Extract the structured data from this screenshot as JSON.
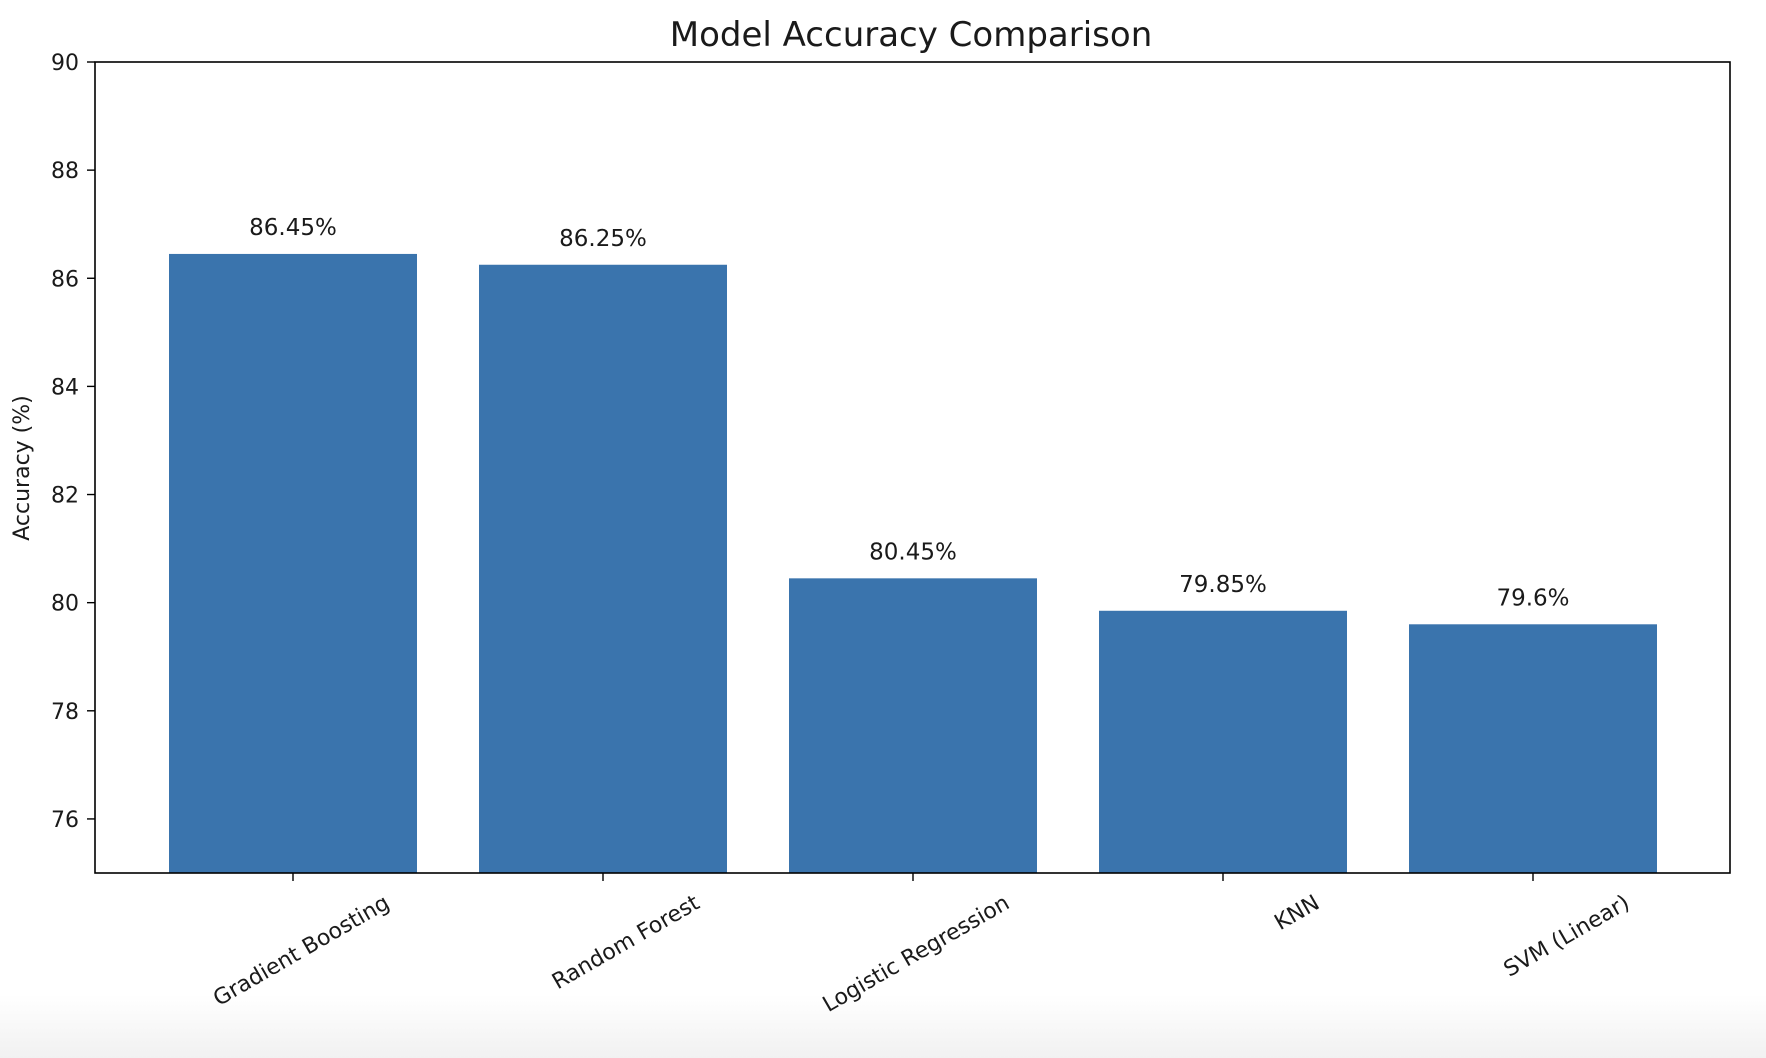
{
  "chart_data": {
    "type": "bar",
    "title": "Model Accuracy Comparison",
    "xlabel": "",
    "ylabel": "Accuracy (%)",
    "categories": [
      "Gradient Boosting",
      "Random Forest",
      "Logistic Regression",
      "KNN",
      "SVM (Linear)"
    ],
    "values": [
      86.45,
      86.25,
      80.45,
      79.85,
      79.6
    ],
    "data_labels": [
      "86.45%",
      "86.25%",
      "80.45%",
      "79.85%",
      "79.6%"
    ],
    "ylim": [
      75,
      90
    ],
    "yticks": [
      76,
      78,
      80,
      82,
      84,
      86,
      88,
      90
    ],
    "ytick_labels": [
      "76",
      "78",
      "80",
      "82",
      "84",
      "86",
      "88",
      "90"
    ],
    "grid": false,
    "legend": "none",
    "bar_color": "#3a74ad"
  }
}
